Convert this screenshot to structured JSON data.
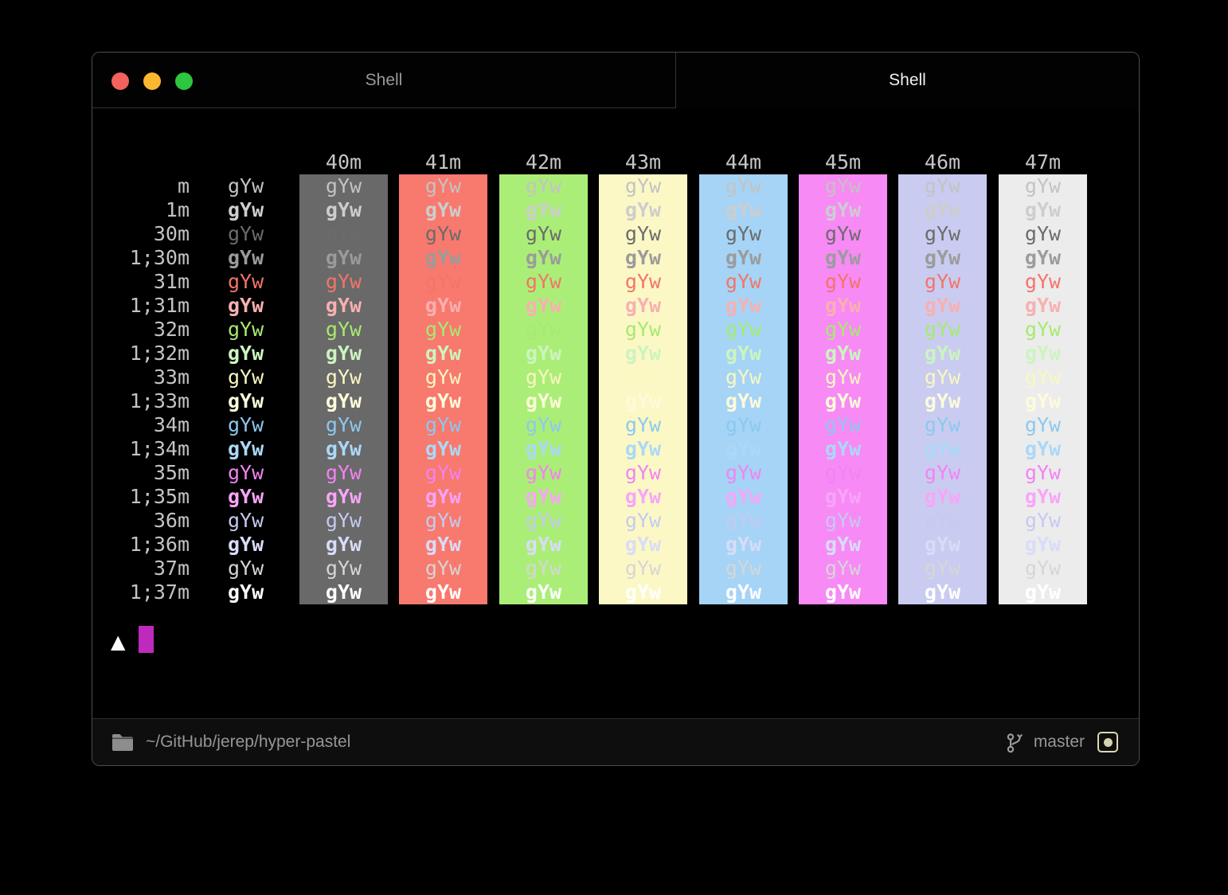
{
  "window": {
    "traffic_lights": [
      {
        "name": "close",
        "color": "#f4625d"
      },
      {
        "name": "minimize",
        "color": "#f9b82f"
      },
      {
        "name": "maximize",
        "color": "#2dc63f"
      }
    ],
    "tabs": [
      {
        "label": "Shell",
        "active": false
      },
      {
        "label": "Shell",
        "active": true
      }
    ]
  },
  "terminal": {
    "cell_text": "gYw",
    "header_color": "#c6c6c6",
    "label_color": "#c3c3c3",
    "columns": [
      {
        "header": "40m",
        "bg": "#696969"
      },
      {
        "header": "41m",
        "bg": "#f8796e"
      },
      {
        "header": "42m",
        "bg": "#abee77"
      },
      {
        "header": "43m",
        "bg": "#fbf8c5"
      },
      {
        "header": "44m",
        "bg": "#a5d4f6"
      },
      {
        "header": "45m",
        "bg": "#f78af5"
      },
      {
        "header": "46m",
        "bg": "#c9ccf0"
      },
      {
        "header": "47m",
        "bg": "#ececec"
      }
    ],
    "rows": [
      {
        "label": "m",
        "fg": "#c3c3c3",
        "bold": false
      },
      {
        "label": "1m",
        "fg": "#cdcdcd",
        "bold": true
      },
      {
        "label": "30m",
        "fg": "#6b6b6b",
        "bold": false
      },
      {
        "label": "1;30m",
        "fg": "#9b9b9b",
        "bold": true
      },
      {
        "label": "31m",
        "fg": "#f3746a",
        "bold": false
      },
      {
        "label": "1;31m",
        "fg": "#f8b0b0",
        "bold": true
      },
      {
        "label": "32m",
        "fg": "#a7ea70",
        "bold": false
      },
      {
        "label": "1;32m",
        "fg": "#ccf4bf",
        "bold": true
      },
      {
        "label": "33m",
        "fg": "#faf7c0",
        "bold": false
      },
      {
        "label": "1;33m",
        "fg": "#fdfbda",
        "bold": true
      },
      {
        "label": "34m",
        "fg": "#8cc8f0",
        "bold": false
      },
      {
        "label": "1;34m",
        "fg": "#abd8f7",
        "bold": true
      },
      {
        "label": "35m",
        "fg": "#f283f2",
        "bold": false
      },
      {
        "label": "1;35m",
        "fg": "#f8a5f8",
        "bold": true
      },
      {
        "label": "36m",
        "fg": "#c4caf0",
        "bold": false
      },
      {
        "label": "1;36m",
        "fg": "#d8dcf8",
        "bold": true
      },
      {
        "label": "37m",
        "fg": "#d6d6d6",
        "bold": false
      },
      {
        "label": "1;37m",
        "fg": "#ffffff",
        "bold": true
      }
    ],
    "prompt": {
      "symbol": "▲",
      "symbol_color": "#fbfbfb",
      "cursor_color": "#bd2abd"
    }
  },
  "statusbar": {
    "path": "~/GitHub/jerep/hyper-pastel",
    "branch": "master",
    "text_color": "#969696",
    "icon_color": "#8d8d8d",
    "dirty_accent": "#dcd8b2"
  }
}
